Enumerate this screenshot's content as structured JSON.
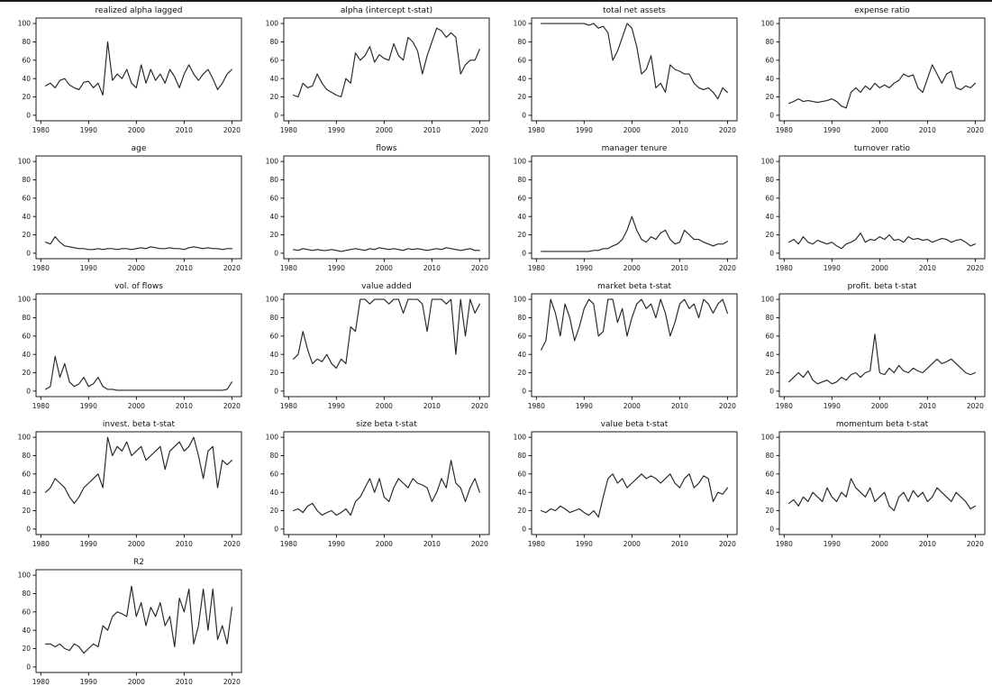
{
  "figure": {
    "background": "#ffffff",
    "line_color": "#262626",
    "spine_color": "#000000",
    "tick_label_color": "#111111"
  },
  "chart_data": {
    "type": "line",
    "layout": {
      "columns": 4,
      "grid": "off",
      "legend": "none"
    },
    "xlabel": "",
    "ylabel": "",
    "xlim": [
      1980,
      2021
    ],
    "ylim": [
      0,
      100
    ],
    "xticks": [
      1980,
      1990,
      2000,
      2010,
      2020
    ],
    "yticks": [
      0,
      20,
      40,
      60,
      80,
      100
    ],
    "x": [
      1981,
      1982,
      1983,
      1984,
      1985,
      1986,
      1987,
      1988,
      1989,
      1990,
      1991,
      1992,
      1993,
      1994,
      1995,
      1996,
      1997,
      1998,
      1999,
      2000,
      2001,
      2002,
      2003,
      2004,
      2005,
      2006,
      2007,
      2008,
      2009,
      2010,
      2011,
      2012,
      2013,
      2014,
      2015,
      2016,
      2017,
      2018,
      2019,
      2020
    ],
    "series": [
      {
        "name": "realized alpha lagged",
        "values": [
          32,
          35,
          30,
          38,
          40,
          33,
          30,
          28,
          36,
          37,
          30,
          35,
          22,
          80,
          38,
          45,
          40,
          50,
          35,
          30,
          55,
          35,
          50,
          38,
          45,
          35,
          50,
          42,
          30,
          45,
          55,
          45,
          38,
          45,
          50,
          40,
          28,
          35,
          45,
          50
        ]
      },
      {
        "name": "alpha (intercept t-stat)",
        "values": [
          22,
          20,
          35,
          30,
          32,
          45,
          35,
          28,
          25,
          22,
          20,
          40,
          35,
          68,
          60,
          65,
          75,
          58,
          66,
          62,
          60,
          78,
          65,
          60,
          85,
          80,
          70,
          45,
          65,
          80,
          95,
          92,
          85,
          90,
          85,
          45,
          55,
          60,
          60,
          72
        ]
      },
      {
        "name": "total net assets",
        "values": [
          100,
          100,
          100,
          100,
          100,
          100,
          100,
          100,
          100,
          100,
          98,
          100,
          95,
          97,
          90,
          60,
          70,
          85,
          100,
          95,
          75,
          45,
          50,
          65,
          30,
          35,
          25,
          55,
          50,
          48,
          45,
          45,
          35,
          30,
          28,
          30,
          25,
          18,
          30,
          25
        ]
      },
      {
        "name": "expense ratio",
        "values": [
          13,
          15,
          18,
          15,
          16,
          15,
          14,
          15,
          16,
          18,
          15,
          10,
          8,
          25,
          30,
          25,
          32,
          28,
          35,
          30,
          33,
          30,
          35,
          38,
          45,
          42,
          44,
          30,
          25,
          40,
          55,
          45,
          35,
          45,
          48,
          30,
          28,
          32,
          30,
          35
        ]
      },
      {
        "name": "age",
        "values": [
          12,
          10,
          18,
          12,
          8,
          7,
          6,
          5,
          5,
          4,
          4,
          5,
          4,
          5,
          5,
          4,
          5,
          5,
          4,
          5,
          6,
          5,
          7,
          6,
          5,
          5,
          6,
          5,
          5,
          4,
          6,
          7,
          6,
          5,
          6,
          5,
          5,
          4,
          5,
          5
        ]
      },
      {
        "name": "flows",
        "values": [
          4,
          3,
          5,
          4,
          3,
          4,
          3,
          3,
          4,
          3,
          2,
          3,
          4,
          5,
          4,
          3,
          5,
          4,
          6,
          5,
          4,
          5,
          4,
          3,
          5,
          4,
          5,
          4,
          3,
          4,
          5,
          4,
          6,
          5,
          4,
          3,
          4,
          5,
          3,
          3
        ]
      },
      {
        "name": "manager tenure",
        "values": [
          2,
          2,
          2,
          2,
          2,
          2,
          2,
          2,
          2,
          2,
          2,
          3,
          3,
          5,
          5,
          8,
          10,
          15,
          25,
          40,
          25,
          15,
          12,
          18,
          15,
          22,
          25,
          15,
          10,
          12,
          25,
          20,
          15,
          15,
          12,
          10,
          8,
          10,
          10,
          13
        ]
      },
      {
        "name": "turnover ratio",
        "values": [
          12,
          15,
          10,
          18,
          12,
          10,
          14,
          12,
          10,
          12,
          8,
          5,
          10,
          12,
          15,
          22,
          12,
          15,
          14,
          18,
          15,
          20,
          14,
          15,
          12,
          18,
          15,
          16,
          14,
          15,
          12,
          14,
          16,
          15,
          12,
          14,
          15,
          12,
          8,
          10
        ]
      },
      {
        "name": "vol. of flows",
        "values": [
          2,
          5,
          38,
          15,
          30,
          10,
          5,
          8,
          15,
          5,
          8,
          15,
          5,
          2,
          2,
          1,
          1,
          1,
          1,
          1,
          1,
          1,
          1,
          1,
          1,
          1,
          1,
          1,
          1,
          1,
          1,
          1,
          1,
          1,
          1,
          1,
          1,
          1,
          2,
          10
        ]
      },
      {
        "name": "value added",
        "values": [
          35,
          40,
          65,
          45,
          30,
          35,
          32,
          40,
          30,
          25,
          35,
          30,
          70,
          65,
          100,
          100,
          95,
          100,
          100,
          100,
          95,
          100,
          100,
          85,
          100,
          100,
          100,
          95,
          65,
          100,
          100,
          100,
          95,
          100,
          40,
          100,
          60,
          100,
          85,
          95
        ]
      },
      {
        "name": "market beta t-stat",
        "values": [
          45,
          55,
          100,
          85,
          60,
          95,
          80,
          55,
          70,
          90,
          100,
          95,
          60,
          65,
          100,
          100,
          75,
          90,
          60,
          80,
          95,
          100,
          90,
          95,
          80,
          100,
          85,
          60,
          75,
          95,
          100,
          90,
          95,
          80,
          100,
          95,
          85,
          95,
          100,
          85
        ]
      },
      {
        "name": "profit. beta t-stat",
        "values": [
          10,
          15,
          20,
          15,
          22,
          12,
          8,
          10,
          12,
          8,
          10,
          15,
          12,
          18,
          20,
          15,
          20,
          22,
          62,
          20,
          18,
          25,
          20,
          28,
          22,
          20,
          25,
          22,
          20,
          25,
          30,
          35,
          30,
          32,
          35,
          30,
          25,
          20,
          18,
          20
        ]
      },
      {
        "name": "invest. beta t-stat",
        "values": [
          40,
          45,
          55,
          50,
          45,
          35,
          28,
          35,
          45,
          50,
          55,
          60,
          45,
          100,
          80,
          90,
          85,
          95,
          80,
          85,
          90,
          75,
          80,
          85,
          90,
          65,
          85,
          90,
          95,
          85,
          90,
          100,
          80,
          55,
          85,
          90,
          45,
          75,
          70,
          75
        ]
      },
      {
        "name": "size beta t-stat",
        "values": [
          20,
          22,
          18,
          25,
          28,
          20,
          15,
          18,
          20,
          15,
          18,
          22,
          15,
          30,
          35,
          45,
          55,
          40,
          55,
          35,
          30,
          45,
          55,
          50,
          45,
          55,
          50,
          48,
          45,
          30,
          40,
          55,
          45,
          75,
          50,
          45,
          30,
          45,
          55,
          40
        ]
      },
      {
        "name": "value beta t-stat",
        "values": [
          20,
          18,
          22,
          20,
          25,
          22,
          18,
          20,
          22,
          18,
          15,
          20,
          13,
          35,
          55,
          60,
          50,
          55,
          45,
          50,
          55,
          60,
          55,
          58,
          55,
          50,
          55,
          60,
          50,
          45,
          55,
          60,
          45,
          50,
          58,
          55,
          30,
          40,
          38,
          45
        ]
      },
      {
        "name": "momentum beta t-stat",
        "values": [
          28,
          32,
          25,
          35,
          30,
          40,
          35,
          30,
          45,
          35,
          30,
          40,
          35,
          55,
          45,
          40,
          35,
          45,
          30,
          35,
          40,
          25,
          20,
          35,
          40,
          30,
          42,
          35,
          40,
          30,
          35,
          45,
          40,
          35,
          30,
          40,
          35,
          30,
          22,
          25
        ]
      },
      {
        "name": "R2",
        "values": [
          25,
          25,
          22,
          25,
          20,
          18,
          25,
          22,
          15,
          20,
          25,
          22,
          45,
          40,
          55,
          60,
          58,
          55,
          88,
          55,
          70,
          45,
          65,
          55,
          70,
          45,
          55,
          22,
          75,
          60,
          85,
          25,
          45,
          85,
          40,
          85,
          30,
          45,
          25,
          65
        ]
      }
    ]
  }
}
